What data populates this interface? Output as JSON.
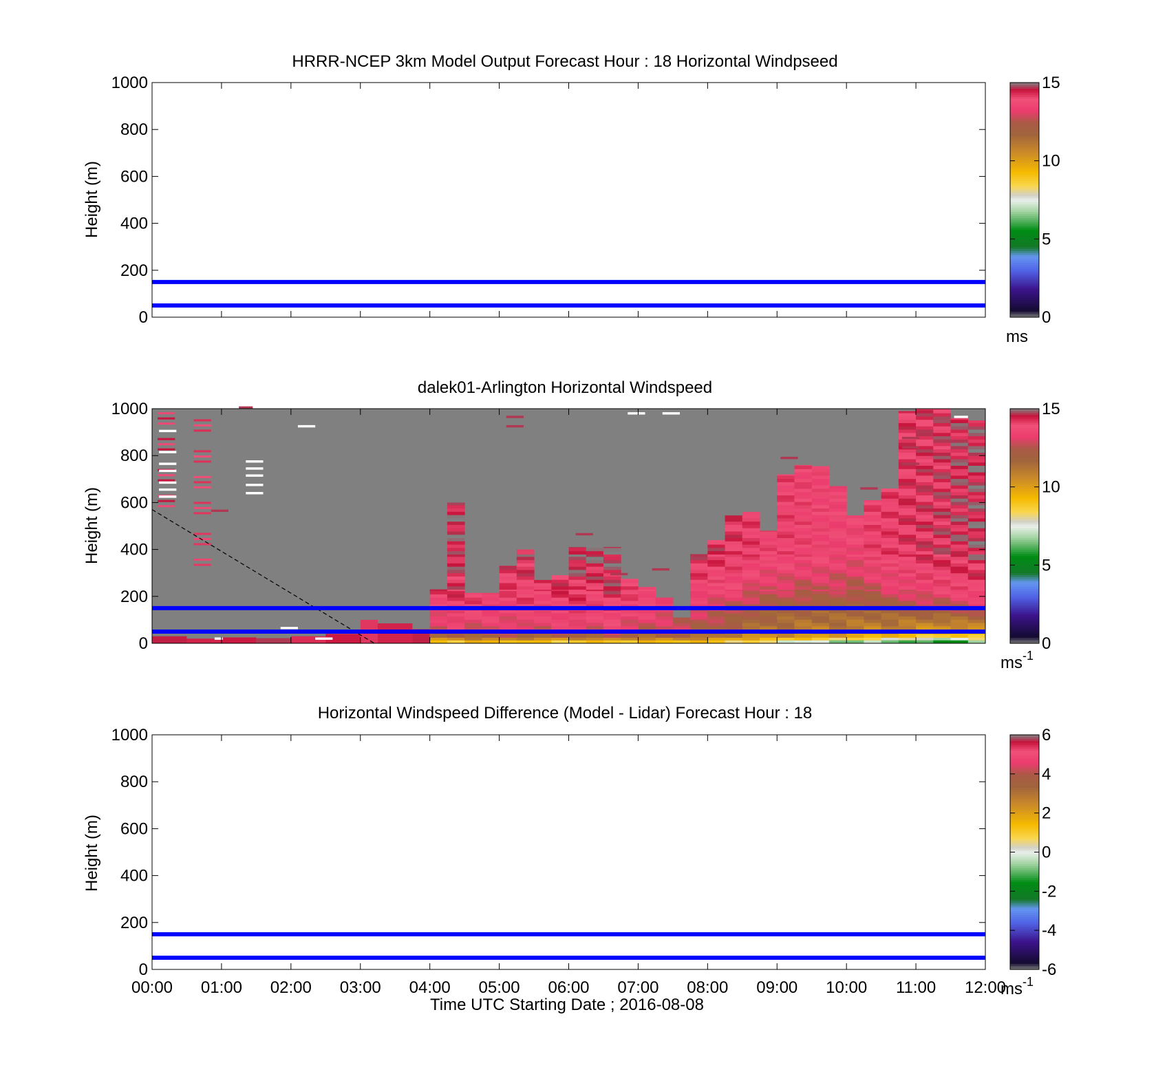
{
  "chart_data": [
    {
      "type": "heatmap",
      "title": "HRRR-NCEP 3km Model Output   Forecast Hour : 18 Horizontal Windpseed",
      "ylabel": "Height (m)",
      "xlabel": "",
      "ylim": [
        0,
        1000
      ],
      "xlim_hours": [
        0,
        12
      ],
      "yticks": [
        "0",
        "200",
        "400",
        "600",
        "800",
        "1000"
      ],
      "reference_lines_m": [
        50,
        150
      ],
      "reference_line_color": "#0000ff",
      "colorbar": {
        "min": 0,
        "max": 15,
        "ticks": [
          "0",
          "5",
          "10",
          "15"
        ],
        "unit": "ms",
        "unit_sup": ""
      },
      "cells": []
    },
    {
      "type": "heatmap",
      "title": "dalek01-Arlington  Horizontal Windspeed",
      "ylabel": "Height (m)",
      "xlabel": "",
      "ylim": [
        0,
        1000
      ],
      "xlim_hours": [
        0,
        12
      ],
      "yticks": [
        "0",
        "200",
        "400",
        "600",
        "800",
        "1000"
      ],
      "reference_lines_m": [
        50,
        150
      ],
      "reference_line_color": "#0000ff",
      "missing_color": "#808080",
      "colorbar": {
        "min": 0,
        "max": 15,
        "ticks": [
          "0",
          "5",
          "10",
          "15"
        ],
        "unit": "ms",
        "unit_sup": "-1"
      },
      "column_width_hours": 0.25,
      "columns": [
        {
          "t": 4.0,
          "top": 230,
          "v": [
            9.2,
            11.5,
            12.8,
            13.6,
            14.2,
            14.5
          ]
        },
        {
          "t": 4.25,
          "top": 600,
          "v": [
            9.0,
            11.8,
            13.2,
            13.9,
            14.3,
            14.6
          ]
        },
        {
          "t": 4.5,
          "top": 215,
          "v": [
            9.4,
            11.9,
            13.0,
            13.8,
            14.1,
            14.3
          ]
        },
        {
          "t": 4.75,
          "top": 215,
          "v": [
            9.3,
            12.0,
            13.1,
            13.7,
            14.0,
            14.2
          ]
        },
        {
          "t": 5.0,
          "top": 330,
          "v": [
            9.5,
            12.2,
            13.0,
            13.6,
            14.0,
            14.4
          ]
        },
        {
          "t": 5.25,
          "top": 400,
          "v": [
            9.1,
            12.0,
            13.2,
            13.8,
            14.1,
            14.5
          ]
        },
        {
          "t": 5.5,
          "top": 270,
          "v": [
            9.0,
            11.8,
            13.0,
            13.6,
            14.0,
            14.3
          ]
        },
        {
          "t": 5.75,
          "top": 290,
          "v": [
            8.8,
            11.9,
            13.2,
            13.9,
            14.2,
            14.6
          ]
        },
        {
          "t": 6.0,
          "top": 410,
          "v": [
            8.9,
            12.1,
            13.3,
            13.9,
            14.3,
            14.8
          ]
        },
        {
          "t": 6.25,
          "top": 415,
          "v": [
            9.0,
            12.0,
            13.1,
            13.7,
            14.2,
            14.7
          ]
        },
        {
          "t": 6.5,
          "top": 410,
          "v": [
            9.2,
            12.3,
            13.4,
            14.0,
            14.4,
            14.7
          ]
        },
        {
          "t": 6.75,
          "top": 275,
          "v": [
            9.0,
            11.9,
            13.0,
            13.7,
            14.0,
            14.3
          ]
        },
        {
          "t": 7.0,
          "top": 240,
          "v": [
            9.1,
            11.7,
            12.9,
            13.5,
            13.9,
            14.2
          ]
        },
        {
          "t": 7.25,
          "top": 195,
          "v": [
            9.3,
            11.8,
            12.8,
            13.4,
            13.8,
            14.1
          ]
        },
        {
          "t": 7.5,
          "top": 110,
          "v": [
            9.4,
            11.9,
            12.6,
            13.2,
            13.6,
            13.9
          ]
        },
        {
          "t": 7.75,
          "top": 380,
          "v": [
            9.2,
            11.6,
            12.4,
            13.0,
            13.8,
            14.4
          ]
        },
        {
          "t": 8.0,
          "top": 440,
          "v": [
            9.0,
            11.2,
            12.2,
            12.9,
            13.6,
            14.3
          ]
        },
        {
          "t": 8.25,
          "top": 545,
          "v": [
            8.6,
            10.9,
            11.9,
            12.6,
            13.5,
            14.2
          ]
        },
        {
          "t": 8.5,
          "top": 560,
          "v": [
            8.4,
            10.6,
            11.5,
            12.3,
            13.2,
            14.0
          ]
        },
        {
          "t": 8.75,
          "top": 480,
          "v": [
            8.0,
            10.5,
            11.3,
            12.1,
            13.0,
            13.8
          ]
        },
        {
          "t": 9.0,
          "top": 720,
          "v": [
            7.6,
            10.4,
            11.2,
            12.0,
            12.9,
            13.9
          ]
        },
        {
          "t": 9.25,
          "top": 760,
          "v": [
            7.2,
            10.3,
            11.1,
            11.9,
            12.8,
            13.8
          ]
        },
        {
          "t": 9.5,
          "top": 755,
          "v": [
            7.0,
            10.2,
            11.0,
            11.8,
            12.9,
            13.7
          ]
        },
        {
          "t": 9.75,
          "top": 670,
          "v": [
            6.8,
            10.0,
            11.1,
            11.9,
            12.7,
            13.6
          ]
        },
        {
          "t": 10.0,
          "top": 545,
          "v": [
            6.5,
            9.8,
            11.0,
            11.7,
            12.6,
            13.5
          ]
        },
        {
          "t": 10.25,
          "top": 610,
          "v": [
            6.7,
            9.6,
            10.8,
            11.8,
            12.9,
            13.9
          ]
        },
        {
          "t": 10.5,
          "top": 660,
          "v": [
            6.6,
            9.4,
            10.9,
            12.0,
            13.1,
            14.0
          ]
        },
        {
          "t": 10.75,
          "top": 990,
          "v": [
            6.2,
            9.1,
            10.7,
            12.1,
            13.3,
            14.2
          ]
        },
        {
          "t": 11.0,
          "top": 1000,
          "v": [
            5.8,
            8.9,
            10.5,
            12.3,
            13.6,
            14.3
          ]
        },
        {
          "t": 11.25,
          "top": 1000,
          "v": [
            5.5,
            8.6,
            10.3,
            12.4,
            13.7,
            14.4
          ]
        },
        {
          "t": 11.5,
          "top": 960,
          "v": [
            5.9,
            8.8,
            10.4,
            12.6,
            13.8,
            14.5
          ]
        },
        {
          "t": 11.75,
          "top": 950,
          "v": [
            6.4,
            9.0,
            10.6,
            12.8,
            14.0,
            14.6
          ]
        }
      ],
      "early_rows": [
        {
          "t": 0.0,
          "w": 0.5,
          "h": 30,
          "v": 14.6
        },
        {
          "t": 0.5,
          "w": 0.5,
          "h": 20,
          "v": 14.4
        },
        {
          "t": 1.0,
          "w": 0.5,
          "h": 25,
          "v": 14.5
        },
        {
          "t": 1.5,
          "w": 0.5,
          "h": 22,
          "v": 14.7
        },
        {
          "t": 2.0,
          "w": 0.5,
          "h": 30,
          "v": 14.3
        },
        {
          "t": 2.5,
          "w": 0.5,
          "h": 40,
          "v": 14.5
        },
        {
          "t": 3.0,
          "w": 0.25,
          "h": 100,
          "v": 14.2
        },
        {
          "t": 3.25,
          "w": 0.5,
          "h": 85,
          "v": 14.4
        },
        {
          "t": 3.75,
          "w": 0.25,
          "h": 60,
          "v": 14.6
        }
      ],
      "speckle_columns": [
        {
          "t": 0.08,
          "y0": 580,
          "y1": 1000,
          "w": 0.25
        },
        {
          "t": 0.6,
          "y0": 330,
          "y1": 1000,
          "w": 0.25
        }
      ],
      "speckle_bits": [
        {
          "t": 0.85,
          "y": 560,
          "w": 0.25
        },
        {
          "t": 1.25,
          "y": 1000,
          "w": 0.2
        },
        {
          "t": 5.1,
          "y": 920,
          "w": 0.25
        },
        {
          "t": 5.1,
          "y": 960,
          "w": 0.25
        },
        {
          "t": 6.1,
          "y": 460,
          "w": 0.25
        },
        {
          "t": 6.6,
          "y": 290,
          "w": 0.25
        },
        {
          "t": 7.2,
          "y": 310,
          "w": 0.25
        },
        {
          "t": 9.05,
          "y": 785,
          "w": 0.25
        },
        {
          "t": 10.2,
          "y": 655,
          "w": 0.25
        },
        {
          "t": 10.8,
          "y": 760,
          "w": 0.25
        },
        {
          "t": 10.8,
          "y": 830,
          "w": 0.25
        },
        {
          "t": 10.8,
          "y": 870,
          "w": 0.25
        }
      ],
      "white_marks": [
        {
          "t": 0.1,
          "y": 900,
          "w": 0.25
        },
        {
          "t": 0.1,
          "y": 810,
          "w": 0.25
        },
        {
          "t": 0.1,
          "y": 760,
          "w": 0.25
        },
        {
          "t": 0.1,
          "y": 730,
          "w": 0.25
        },
        {
          "t": 0.1,
          "y": 680,
          "w": 0.25
        },
        {
          "t": 0.1,
          "y": 650,
          "w": 0.25
        },
        {
          "t": 0.1,
          "y": 620,
          "w": 0.25
        },
        {
          "t": 1.35,
          "y": 770,
          "w": 0.25
        },
        {
          "t": 1.35,
          "y": 740,
          "w": 0.25
        },
        {
          "t": 1.35,
          "y": 710,
          "w": 0.25
        },
        {
          "t": 1.35,
          "y": 670,
          "w": 0.25
        },
        {
          "t": 1.35,
          "y": 635,
          "w": 0.25
        },
        {
          "t": 2.1,
          "y": 920,
          "w": 0.25
        },
        {
          "t": 1.85,
          "y": 60,
          "w": 0.25
        },
        {
          "t": 0.9,
          "y": 15,
          "w": 0.12
        },
        {
          "t": 2.35,
          "y": 15,
          "w": 0.25
        },
        {
          "t": 6.85,
          "y": 975,
          "w": 0.25
        },
        {
          "t": 7.35,
          "y": 975,
          "w": 0.25
        },
        {
          "t": 11.55,
          "y": 960,
          "w": 0.2
        }
      ],
      "dashed_line": {
        "from": {
          "t": 0,
          "h": 570
        },
        "to": {
          "t": 3.2,
          "h": 0
        }
      },
      "cells": []
    },
    {
      "type": "heatmap",
      "title": "Horizontal Windspeed Difference (Model - Lidar) Forecast Hour : 18",
      "ylabel": "Height (m)",
      "xlabel": "Time UTC  Starting Date ; 2016-08-08",
      "ylim": [
        0,
        1000
      ],
      "xlim_hours": [
        0,
        12
      ],
      "yticks": [
        "0",
        "200",
        "400",
        "600",
        "800",
        "1000"
      ],
      "xticks": [
        "00:00",
        "01:00",
        "02:00",
        "03:00",
        "04:00",
        "05:00",
        "06:00",
        "07:00",
        "08:00",
        "09:00",
        "10:00",
        "11:00",
        "12:00"
      ],
      "reference_lines_m": [
        50,
        150
      ],
      "reference_line_color": "#0000ff",
      "colorbar": {
        "min": -6,
        "max": 6,
        "ticks": [
          "-6",
          "-4",
          "-2",
          "0",
          "2",
          "4",
          "6"
        ],
        "unit": "ms",
        "unit_sup": "-1"
      },
      "cells": []
    }
  ]
}
